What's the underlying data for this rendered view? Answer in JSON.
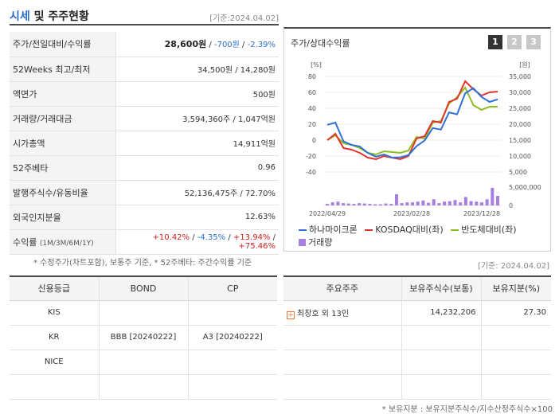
{
  "header": {
    "title_accent": "시세",
    "title_rest": " 및 주주현황",
    "date": "[기준:2024.04.02]"
  },
  "quote": {
    "rows": [
      {
        "label": "주가/전일대비/수익률",
        "price": "28,600원",
        "change": "-700원",
        "rate": "-2.39%"
      },
      {
        "label": "52Weeks 최고/최저",
        "value": "34,500원 / 14,280원"
      },
      {
        "label": "액면가",
        "value": "500원"
      },
      {
        "label": "거래량/거래대금",
        "value": "3,594,360주 / 1,047억원"
      },
      {
        "label": "시가총액",
        "value": "14,911억원"
      },
      {
        "label": "52주베타",
        "value": "0.96"
      },
      {
        "label": "발행주식수/유동비율",
        "value": "52,136,475주 / 72.70%"
      },
      {
        "label": "외국인지분율",
        "value": "12.63%"
      }
    ],
    "returns": {
      "label": "수익률",
      "label_small": "(1M/3M/6M/1Y)",
      "r1": "+10.42%",
      "r2": "-4.35%",
      "r3": "+13.94%",
      "r4": "+75.46%"
    }
  },
  "footnote1": "* 수정주가(차트포함), 보통주 기준, * 52주베타: 주간수익률 기준",
  "footnote_date": "[기준: 2024.04.02]",
  "chart": {
    "title": "주가/상대수익률",
    "tabs": [
      "1",
      "2",
      "3"
    ],
    "left_unit": "[%]",
    "right_unit": "[원]",
    "legend": [
      "하나마이크론",
      "KOSDAQ대비(좌)",
      "반도체대비(좌)",
      "거래량"
    ],
    "colors": {
      "stock": "#2f6fd6",
      "kosdaq": "#e0342c",
      "semi": "#8cbf1f",
      "volume": "#a77fdd"
    }
  },
  "chart_data": {
    "type": "line",
    "x_labels": [
      "2022/04/29",
      "2023/02/28",
      "2023/12/28"
    ],
    "left_ticks": [
      "80",
      "60",
      "40",
      "20",
      "0",
      "-20",
      "-40"
    ],
    "right_ticks": [
      "35,000",
      "30,000",
      "25,000",
      "20,000",
      "15,000",
      "10,000",
      "5,000"
    ],
    "vol_ticks": [
      "5,000,000",
      "0"
    ],
    "left_ylim": [
      -40,
      80
    ],
    "right_ylim": [
      5000,
      35000
    ],
    "series": [
      {
        "name": "하나마이크론",
        "axis": "right",
        "values": [
          19800,
          20500,
          14600,
          13500,
          13000,
          11000,
          9800,
          10500,
          9500,
          9600,
          10300,
          13100,
          14900,
          18800,
          18300,
          23700,
          23100,
          29700,
          31300,
          28600,
          27000,
          27800
        ]
      },
      {
        "name": "KOSDAQ대비(좌)",
        "axis": "left",
        "values": [
          0,
          8,
          -10,
          -12,
          -16,
          -22,
          -24,
          -20,
          -22,
          -24,
          -20,
          2,
          5,
          24,
          22,
          48,
          52,
          74,
          64,
          56,
          60,
          61
        ]
      },
      {
        "name": "반도체대비(좌)",
        "axis": "left",
        "values": [
          0,
          6,
          -4,
          -6,
          -10,
          -16,
          -18,
          -14,
          -15,
          -16,
          -13,
          4,
          2,
          22,
          24,
          46,
          54,
          66,
          44,
          38,
          42,
          42
        ]
      }
    ],
    "volume": [
      0.4,
      0.8,
      1.0,
      0.6,
      0.5,
      0.4,
      0.6,
      0.5,
      0.4,
      0.3,
      0.3,
      0.5,
      0.4,
      2.9,
      0.6,
      0.8,
      0.8,
      1.0,
      1.3,
      0.7,
      1.6,
      0.6,
      1.0,
      1.1,
      1.4,
      0.8,
      2.2,
      1.1,
      1.0,
      0.8,
      1.6,
      4.6,
      2.5
    ]
  },
  "credit": {
    "headers": [
      "신용등급",
      "BOND",
      "CP"
    ],
    "rows": [
      [
        "KIS",
        "",
        ""
      ],
      [
        "KR",
        "BBB [20240222]",
        "A3 [20240222]"
      ],
      [
        "NICE",
        "",
        ""
      ],
      [
        "",
        "",
        ""
      ]
    ]
  },
  "holders": {
    "headers": [
      "주요주주",
      "보유주식수(보통)",
      "보유지분(%)"
    ],
    "rows": [
      {
        "name": "최창호 외 13인",
        "shares": "14,232,206",
        "pct": "27.30"
      }
    ]
  },
  "footnote2": "* 보유지분 : 보유지분주식수/지수산정주식수×100"
}
